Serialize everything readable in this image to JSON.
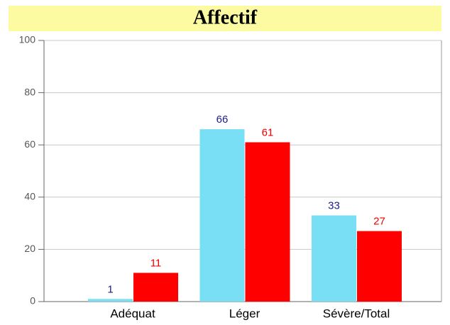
{
  "chart_data": {
    "type": "bar",
    "title": "Affectif",
    "categories": [
      "Adéquat",
      "Léger",
      "Sévère/Total"
    ],
    "series": [
      {
        "color": "#78dff4",
        "label_color": "#1b1b8a",
        "values": [
          1,
          66,
          33
        ]
      },
      {
        "color": "#ff0000",
        "label_color": "#ee0000",
        "values": [
          11,
          61,
          27
        ]
      }
    ],
    "ylim": [
      0,
      100
    ],
    "yticks": [
      0,
      20,
      40,
      60,
      80,
      100
    ],
    "grid": true
  }
}
